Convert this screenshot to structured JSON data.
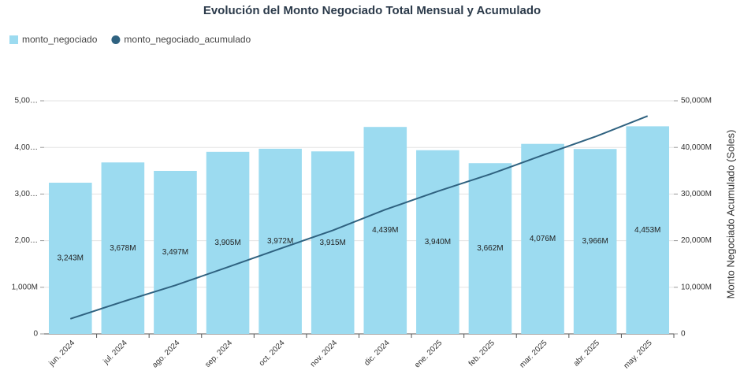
{
  "chart_data": {
    "type": "bar_line",
    "title": "Evolución del Monto Negociado Total Mensual y Acumulado",
    "y2_label": "Monto Negociado Acumulado (Soles)",
    "categories": [
      "jun. 2024",
      "jul. 2024",
      "ago. 2024",
      "sep. 2024",
      "oct. 2024",
      "nov. 2024",
      "dic. 2024",
      "ene. 2025",
      "feb. 2025",
      "mar. 2025",
      "abr. 2025",
      "may. 2025"
    ],
    "series": [
      {
        "name": "monto_negociado",
        "color": "#9cdbf0",
        "type": "bar",
        "values": [
          3243,
          3678,
          3497,
          3905,
          3972,
          3915,
          4439,
          3940,
          3662,
          4076,
          3966,
          4453
        ],
        "value_labels": [
          "3,243M",
          "3,678M",
          "3,497M",
          "3,905M",
          "3,972M",
          "3,915M",
          "4,439M",
          "3,940M",
          "3,662M",
          "4,076M",
          "3,966M",
          "4,453M"
        ]
      },
      {
        "name": "monto_negociado_acumulado",
        "color": "#2f6280",
        "type": "line",
        "axis": "y2",
        "values": [
          3243,
          6921,
          10418,
          14323,
          18295,
          22210,
          26649,
          30589,
          34251,
          38327,
          42293,
          46746
        ]
      }
    ],
    "ylim": [
      0,
      5000
    ],
    "yticks": [
      0,
      {
        "value": 1000,
        "label": "1,000M"
      },
      {
        "value": 2000,
        "label": "2,00…"
      },
      {
        "value": 3000,
        "label": "3,00…"
      },
      {
        "value": 4000,
        "label": "4,00…"
      },
      {
        "value": 5000,
        "label": "5,00…"
      }
    ],
    "y2lim": [
      0,
      50000
    ],
    "y2ticks": [
      0,
      {
        "value": 10000,
        "label": "10,000M"
      },
      {
        "value": 20000,
        "label": "20,000M"
      },
      {
        "value": 30000,
        "label": "30,000M"
      },
      {
        "value": 40000,
        "label": "40,000M"
      },
      {
        "value": 50000,
        "label": "50,000M"
      }
    ],
    "grid": true
  }
}
